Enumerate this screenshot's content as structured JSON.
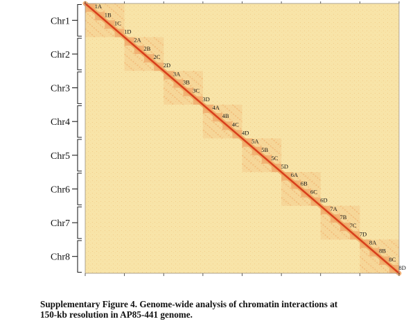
{
  "figure": {
    "chromosomes": [
      "Chr1",
      "Chr2",
      "Chr3",
      "Chr4",
      "Chr5",
      "Chr6",
      "Chr7",
      "Chr8"
    ],
    "blocks": [
      "1A",
      "1B",
      "1C",
      "1D",
      "2A",
      "2B",
      "2C",
      "2D",
      "3A",
      "3B",
      "3C",
      "3D",
      "4A",
      "4B",
      "4C",
      "4D",
      "5A",
      "5B",
      "5C",
      "5D",
      "6A",
      "6B",
      "6C",
      "6D",
      "7A",
      "7B",
      "7C",
      "7D",
      "8A",
      "8B",
      "8C",
      "8D"
    ],
    "colors": {
      "background": "#f8e4a8",
      "diagonal": "#d8401c",
      "interaction": "#f0a864",
      "border": "#9a8e80"
    }
  },
  "caption": {
    "line1": "Supplementary Figure 4. Genome-wide analysis of chromatin interactions at",
    "line2": "150-kb resolution in AP85-441 genome."
  }
}
